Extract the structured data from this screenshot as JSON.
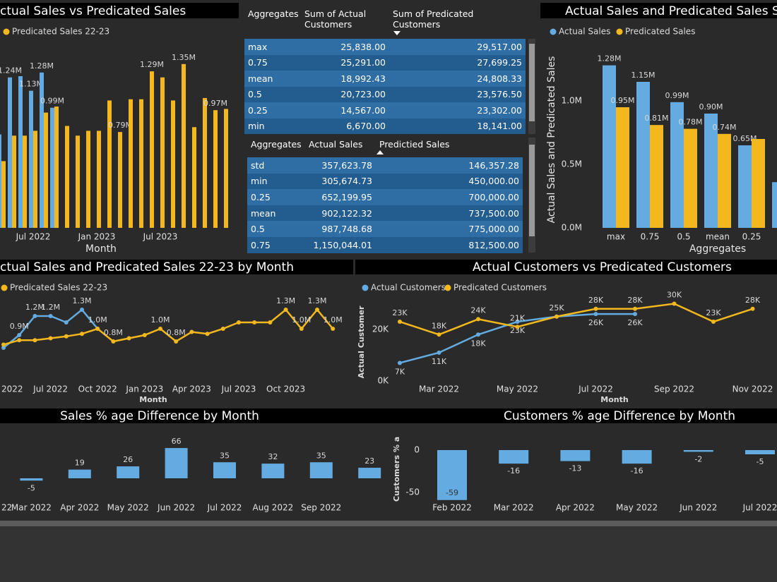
{
  "chart_data": [
    {
      "type": "bar",
      "title": "ctual Sales vs Predicated Sales",
      "x_label": "Month",
      "categories": [
        null,
        null,
        null,
        "Jul 2022",
        null,
        null,
        null,
        null,
        null,
        "Jan 2023",
        null,
        null,
        null,
        null,
        null,
        "Jul 2023",
        null,
        null,
        null,
        null,
        null,
        null
      ],
      "ylim": [
        0,
        1.5
      ],
      "series": [
        {
          "color": "#63abe0",
          "values": [
            0.77,
            1.24,
            1.25,
            1.13,
            1.28,
            0.99,
            null,
            null,
            null,
            null,
            null,
            null,
            null,
            null,
            null,
            null,
            null,
            null,
            null,
            null,
            null,
            null
          ],
          "value_labels": [
            null,
            "1.24M",
            null,
            "1.13M",
            "1.28M",
            "0.99M",
            null,
            null,
            null,
            null,
            null,
            null,
            null,
            null,
            null,
            null,
            null,
            null,
            null,
            null,
            null,
            null
          ]
        },
        {
          "name": "Predicated Sales 22-23",
          "color": "#f2b81d",
          "values": [
            0.55,
            0.76,
            0.76,
            0.8,
            0.95,
            1.0,
            0.84,
            0.76,
            0.8,
            0.8,
            1.05,
            0.79,
            1.06,
            1.06,
            1.29,
            1.24,
            1.05,
            1.35,
            0.83,
            1.07,
            0.97,
            0.98
          ],
          "value_labels": [
            null,
            null,
            null,
            null,
            null,
            null,
            null,
            null,
            null,
            null,
            null,
            "0.79M",
            null,
            null,
            "1.29M",
            null,
            null,
            "1.35M",
            null,
            null,
            "0.97M",
            null
          ]
        }
      ]
    },
    {
      "type": "bar",
      "title": "Actual Sales and Predicated Sales S",
      "x_label": "Aggregates",
      "y_label": "Actual Sales and Predicated Sales",
      "categories": [
        "max",
        "0.75",
        "0.5",
        "mean",
        "0.25",
        null
      ],
      "ylim": [
        0,
        1.4
      ],
      "yticks": [
        {
          "value": 0,
          "label": "0.0M"
        },
        {
          "value": 0.5,
          "label": "0.5M"
        },
        {
          "value": 1,
          "label": "1.0M"
        }
      ],
      "series": [
        {
          "name": "Actual Sales",
          "color": "#63abe0",
          "values": [
            1.28,
            1.15,
            0.99,
            0.9,
            0.65,
            0.36
          ],
          "value_labels": [
            "1.28M",
            "1.15M",
            "0.99M",
            "0.90M",
            "0.65M",
            null
          ]
        },
        {
          "name": "Predicated Sales",
          "color": "#f2b81d",
          "values": [
            0.95,
            0.81,
            0.78,
            0.74,
            0.7,
            null
          ],
          "value_labels": [
            "0.95M",
            "0.81M",
            "0.78M",
            "0.74M",
            null,
            null
          ]
        }
      ]
    },
    {
      "type": "line",
      "title": "ctual Sales and Predicated Sales 22-23 by Month",
      "x_label": "Month",
      "categories": [
        "2022",
        null,
        null,
        "Jul 2022",
        null,
        null,
        "Oct 2022",
        null,
        null,
        "Jan 2023",
        null,
        null,
        "Apr 2023",
        null,
        null,
        "Jul 2023",
        null,
        null,
        "Oct 2023",
        null,
        null,
        null
      ],
      "ylim": [
        0.4,
        1.4
      ],
      "series": [
        {
          "color": "#63abe0",
          "values": [
            0.7,
            0.9,
            1.2,
            1.2,
            1.1,
            1.3,
            1.0,
            null,
            null,
            null,
            null,
            null,
            null,
            null,
            null,
            null,
            null,
            null,
            null,
            null,
            null,
            null
          ],
          "value_labels": [
            null,
            "0.9M",
            "1.2M",
            "1.2M",
            null,
            "1.3M",
            "1.0M",
            null,
            null,
            null,
            null,
            null,
            null,
            null,
            null,
            null,
            null,
            null,
            null,
            null,
            null,
            null
          ]
        },
        {
          "name": "Predicated Sales 22-23",
          "color": "#f2b81d",
          "values": [
            0.75,
            0.82,
            0.82,
            0.85,
            0.88,
            0.92,
            1.0,
            0.8,
            0.85,
            0.9,
            1.0,
            0.8,
            0.95,
            0.92,
            1.0,
            1.1,
            1.1,
            1.1,
            1.3,
            1.0,
            1.3,
            1.0
          ],
          "value_labels": [
            null,
            null,
            null,
            null,
            null,
            null,
            null,
            "0.8M",
            null,
            null,
            "1.0M",
            "0.8M",
            null,
            null,
            null,
            null,
            null,
            null,
            "1.3M",
            "1.0M",
            "1.3M",
            "1.0M"
          ]
        }
      ]
    },
    {
      "type": "line",
      "title": "Actual Customers vs Predicated Customers",
      "x_label": "Month",
      "y_label": "Actual Customer",
      "categories": [
        null,
        "Mar 2022",
        null,
        "May 2022",
        null,
        "Jul 2022",
        null,
        "Sep 2022",
        null,
        "Nov 2022"
      ],
      "ylim": [
        0,
        31
      ],
      "yticks": [
        {
          "value": 0,
          "label": "0K"
        },
        {
          "value": 20,
          "label": "20K"
        }
      ],
      "series": [
        {
          "name": "Actual Customers",
          "color": "#63abe0",
          "values": [
            7,
            11,
            18,
            23,
            25,
            26,
            26,
            null,
            null,
            null
          ],
          "value_labels": [
            "7K",
            "11K",
            "18K",
            "23K",
            null,
            "26K",
            "26K",
            null,
            null,
            null
          ]
        },
        {
          "name": "Predicated Customers",
          "color": "#f2b81d",
          "values": [
            23,
            18,
            24,
            21,
            25,
            28,
            28,
            30,
            23,
            28
          ],
          "value_labels": [
            "23K",
            "18K",
            "24K",
            "21K",
            "25K",
            "28K",
            "28K",
            "30K",
            "23K",
            "28K"
          ]
        }
      ]
    },
    {
      "type": "bar",
      "title": "Sales % age Difference by Month",
      "color": "#63abe0",
      "categories": [
        "22",
        "Mar 2022",
        "Apr 2022",
        "May 2022",
        "Jun 2022",
        "Jul 2022",
        "Aug 2022",
        "Sep 2022",
        null
      ],
      "values": [
        null,
        -5,
        19,
        26,
        66,
        35,
        32,
        35,
        23
      ],
      "ylim": [
        -10,
        75
      ]
    },
    {
      "type": "bar",
      "title": "Customers % age Difference by Month",
      "color": "#63abe0",
      "y_label": "Customers % a",
      "categories": [
        "Feb 2022",
        "Mar 2022",
        "Apr 2022",
        "May 2022",
        "Jun 2022",
        "Jul 2022"
      ],
      "values": [
        -59,
        -16,
        -13,
        -16,
        -2,
        -5
      ],
      "ylim": [
        -62,
        8
      ],
      "yticks": [
        0,
        -50
      ]
    }
  ],
  "tables": [
    {
      "header": [
        "Aggregates",
        "Sum of Actual Customers",
        "Sum of Predicated Customers"
      ],
      "rows": [
        [
          "max",
          "25,838.00",
          "29,517.00"
        ],
        [
          "0.75",
          "25,291.00",
          "27,699.25"
        ],
        [
          "mean",
          "18,992.43",
          "24,808.33"
        ],
        [
          "0.5",
          "20,723.00",
          "23,576.50"
        ],
        [
          "0.25",
          "14,567.00",
          "23,302.00"
        ],
        [
          "min",
          "6,670.00",
          "18,141.00"
        ]
      ]
    },
    {
      "header": [
        "Aggregates",
        "Actual Sales",
        "Predictied Sales"
      ],
      "rows": [
        [
          "std",
          "357,623.78",
          "146,357.28"
        ],
        [
          "min",
          "305,674.73",
          "450,000.00"
        ],
        [
          "0.25",
          "652,199.95",
          "700,000.00"
        ],
        [
          "mean",
          "902,122.32",
          "737,500.00"
        ],
        [
          "0.5",
          "987,748.68",
          "775,000.00"
        ],
        [
          "0.75",
          "1,150,044.01",
          "812,500.00"
        ]
      ]
    }
  ]
}
